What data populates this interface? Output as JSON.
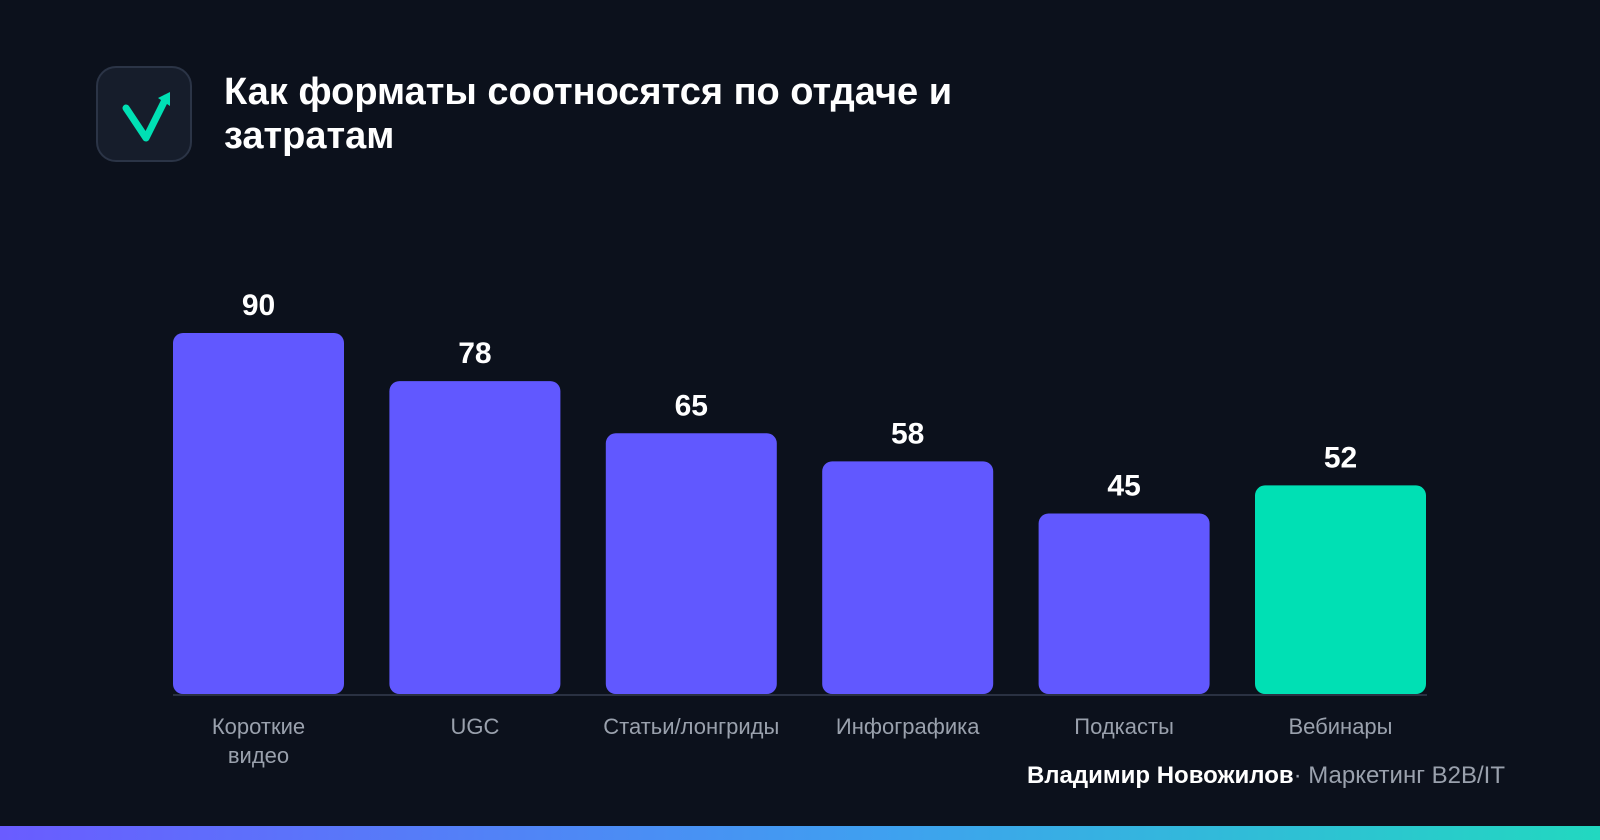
{
  "header": {
    "title": "Как форматы соотносятся по отдаче и затратам"
  },
  "logo": {
    "icon": "checkmark-arrow-icon",
    "color": "#00e0b4"
  },
  "chart_data": {
    "type": "bar",
    "categories": [
      "Короткие видео",
      "UGC",
      "Статьи/лонгриды",
      "Инфографика",
      "Подкасты",
      "Вебинары"
    ],
    "series": [
      {
        "values": [
          90,
          78,
          65,
          58,
          45,
          52
        ]
      }
    ],
    "data_labels": [
      "90",
      "78",
      "65",
      "58",
      "45",
      "52"
    ],
    "ylim": [
      0,
      90
    ],
    "grid": false,
    "legend": "none",
    "colors": {
      "default": "#6158ff",
      "highlight": "#00e0b4",
      "highlight_category": "Вебинары",
      "label": "#ffffff",
      "category_label": "#9aa1ad"
    }
  },
  "footer": {
    "author": "Владимир Новожилов",
    "separator": "·",
    "topic": "Маркетинг B2B/IT"
  }
}
